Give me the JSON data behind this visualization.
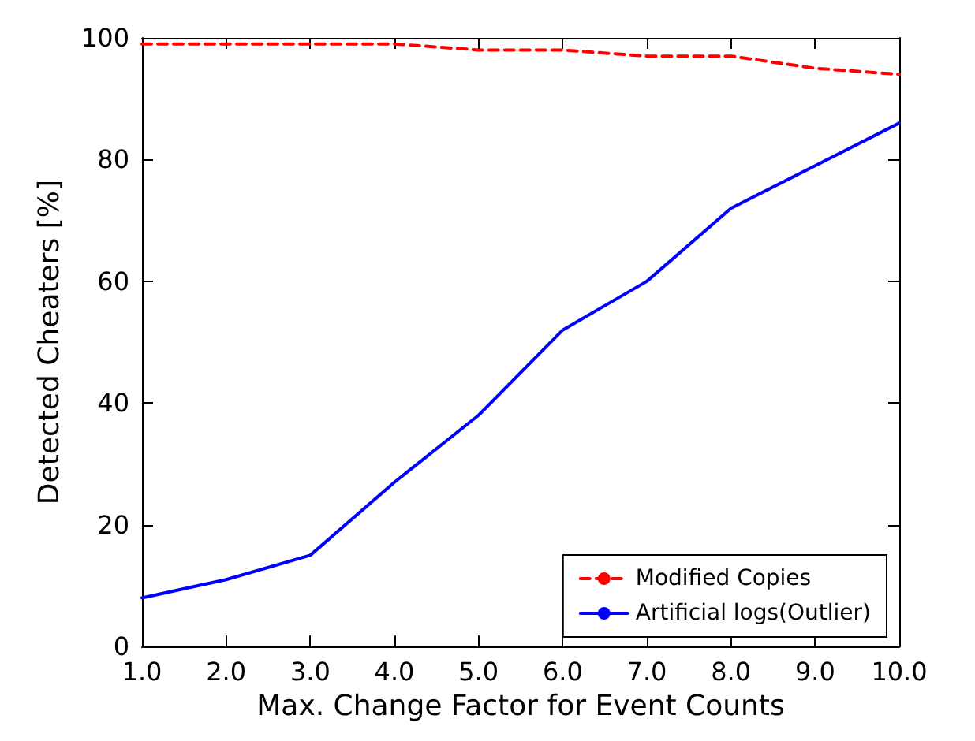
{
  "chart_data": {
    "type": "line",
    "xlabel": "Max. Change Factor for Event Counts",
    "ylabel": "Detected Cheaters [%]",
    "x": [
      1,
      2,
      3,
      4,
      5,
      6,
      7,
      8,
      9,
      10
    ],
    "series": [
      {
        "name": "Modified Copies",
        "color": "#ff0000",
        "line_style": "dashed",
        "values": [
          99,
          99,
          99,
          99,
          98,
          98,
          97,
          97,
          95,
          94
        ]
      },
      {
        "name": "Artificial logs(Outlier)",
        "color": "#0000ff",
        "line_style": "solid",
        "values": [
          8,
          11,
          15,
          27,
          38,
          52,
          60,
          72,
          79,
          86
        ]
      }
    ],
    "xlim": [
      1,
      10
    ],
    "xticks": [
      {
        "value": 1,
        "label": "1.0"
      },
      {
        "value": 2,
        "label": "2.0"
      },
      {
        "value": 3,
        "label": "3.0"
      },
      {
        "value": 4,
        "label": "4.0"
      },
      {
        "value": 5,
        "label": "5.0"
      },
      {
        "value": 6,
        "label": "6.0"
      },
      {
        "value": 7,
        "label": "7.0"
      },
      {
        "value": 8,
        "label": "8.0"
      },
      {
        "value": 9,
        "label": "9.0"
      },
      {
        "value": 10,
        "label": "10.0"
      }
    ],
    "ylim": [
      0,
      100
    ],
    "yticks": [
      0,
      20,
      40,
      60,
      80,
      100
    ],
    "legend": "bottom right",
    "marker": "none",
    "grid": false
  }
}
